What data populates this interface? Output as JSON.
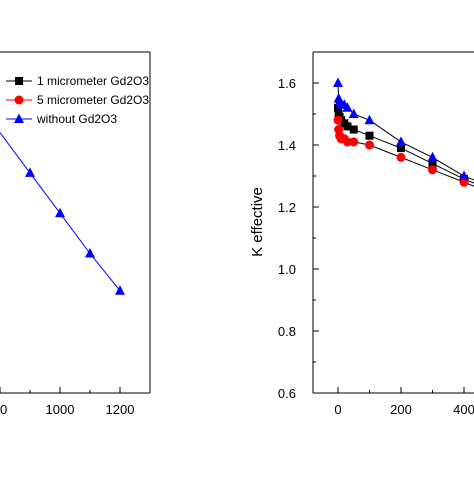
{
  "chart_data": [
    {
      "type": "line",
      "title": "",
      "xlabel": "",
      "ylabel": "",
      "x_ticks": [
        "00",
        "1000",
        "1200"
      ],
      "xlim": [
        795,
        1255
      ],
      "ylim": [
        0.6,
        1.7
      ],
      "grid": false,
      "legend_position": "top-right",
      "series": [
        {
          "name": "1 micrometer Gd2O3",
          "marker": "square",
          "color": "#000000",
          "x": [],
          "y": []
        },
        {
          "name": "5 micrometer Gd2O3",
          "marker": "circle",
          "color": "#ff0000",
          "x": [],
          "y": []
        },
        {
          "name": "without Gd2O3",
          "marker": "triangle",
          "color": "#0000ff",
          "x": [
            900,
            1000,
            1100,
            1200
          ],
          "y": [
            1.31,
            1.18,
            1.05,
            0.93
          ]
        }
      ]
    },
    {
      "type": "line",
      "title": "",
      "xlabel": "",
      "ylabel": "K effective",
      "y_ticks": [
        "0.6",
        "0.8",
        "1.0",
        "1.2",
        "1.4",
        "1.6"
      ],
      "x_ticks": [
        "0",
        "200",
        "400"
      ],
      "xlim": [
        -80,
        450
      ],
      "ylim": [
        0.6,
        1.7
      ],
      "grid": false,
      "series": [
        {
          "name": "1 micrometer Gd2O3",
          "marker": "square",
          "color": "#000000",
          "x": [
            0,
            2,
            5,
            10,
            20,
            30,
            50,
            100,
            200,
            300,
            400
          ],
          "y": [
            1.52,
            1.5,
            1.49,
            1.48,
            1.47,
            1.46,
            1.45,
            1.43,
            1.39,
            1.34,
            1.29
          ]
        },
        {
          "name": "5 micrometer Gd2O3",
          "marker": "circle",
          "color": "#ff0000",
          "x": [
            0,
            2,
            5,
            10,
            20,
            30,
            50,
            100,
            200,
            300,
            400
          ],
          "y": [
            1.48,
            1.45,
            1.43,
            1.42,
            1.42,
            1.41,
            1.41,
            1.4,
            1.36,
            1.32,
            1.28
          ]
        },
        {
          "name": "without Gd2O3",
          "marker": "triangle",
          "color": "#0000ff",
          "x": [
            0,
            2,
            5,
            10,
            20,
            30,
            50,
            100,
            200,
            300,
            400
          ],
          "y": [
            1.6,
            1.55,
            1.54,
            1.53,
            1.53,
            1.52,
            1.5,
            1.48,
            1.41,
            1.36,
            1.3
          ]
        }
      ]
    }
  ]
}
